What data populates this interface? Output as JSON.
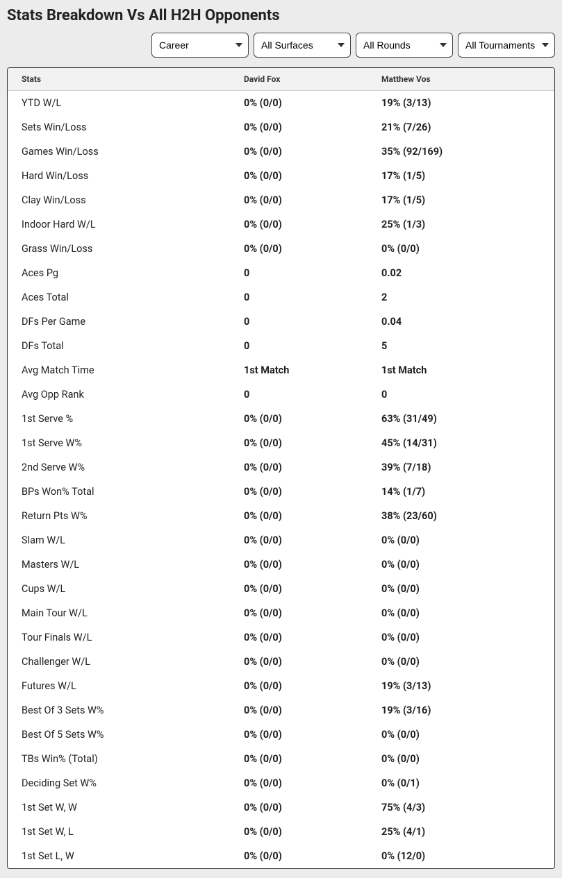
{
  "title": "Stats Breakdown Vs All H2H Opponents",
  "filters": {
    "career": {
      "selected": "Career",
      "options": [
        "Career"
      ]
    },
    "surfaces": {
      "selected": "All Surfaces",
      "options": [
        "All Surfaces"
      ]
    },
    "rounds": {
      "selected": "All Rounds",
      "options": [
        "All Rounds"
      ]
    },
    "tournaments": {
      "selected": "All Tournaments",
      "options": [
        "All Tournaments"
      ]
    }
  },
  "columns": {
    "stats": "Stats",
    "player1": "David Fox",
    "player2": "Matthew Vos"
  },
  "rows": [
    {
      "label": "YTD W/L",
      "p1": "0% (0/0)",
      "p2": "19% (3/13)"
    },
    {
      "label": "Sets Win/Loss",
      "p1": "0% (0/0)",
      "p2": "21% (7/26)"
    },
    {
      "label": "Games Win/Loss",
      "p1": "0% (0/0)",
      "p2": "35% (92/169)"
    },
    {
      "label": "Hard Win/Loss",
      "p1": "0% (0/0)",
      "p2": "17% (1/5)"
    },
    {
      "label": "Clay Win/Loss",
      "p1": "0% (0/0)",
      "p2": "17% (1/5)"
    },
    {
      "label": "Indoor Hard W/L",
      "p1": "0% (0/0)",
      "p2": "25% (1/3)"
    },
    {
      "label": "Grass Win/Loss",
      "p1": "0% (0/0)",
      "p2": "0% (0/0)"
    },
    {
      "label": "Aces Pg",
      "p1": "0",
      "p2": "0.02"
    },
    {
      "label": "Aces Total",
      "p1": "0",
      "p2": "2"
    },
    {
      "label": "DFs Per Game",
      "p1": "0",
      "p2": "0.04"
    },
    {
      "label": "DFs Total",
      "p1": "0",
      "p2": "5"
    },
    {
      "label": "Avg Match Time",
      "p1": "1st Match",
      "p2": "1st Match"
    },
    {
      "label": "Avg Opp Rank",
      "p1": "0",
      "p2": "0"
    },
    {
      "label": "1st Serve %",
      "p1": "0% (0/0)",
      "p2": "63% (31/49)"
    },
    {
      "label": "1st Serve W%",
      "p1": "0% (0/0)",
      "p2": "45% (14/31)"
    },
    {
      "label": "2nd Serve W%",
      "p1": "0% (0/0)",
      "p2": "39% (7/18)"
    },
    {
      "label": "BPs Won% Total",
      "p1": "0% (0/0)",
      "p2": "14% (1/7)"
    },
    {
      "label": "Return Pts W%",
      "p1": "0% (0/0)",
      "p2": "38% (23/60)"
    },
    {
      "label": "Slam W/L",
      "p1": "0% (0/0)",
      "p2": "0% (0/0)"
    },
    {
      "label": "Masters W/L",
      "p1": "0% (0/0)",
      "p2": "0% (0/0)"
    },
    {
      "label": "Cups W/L",
      "p1": "0% (0/0)",
      "p2": "0% (0/0)"
    },
    {
      "label": "Main Tour W/L",
      "p1": "0% (0/0)",
      "p2": "0% (0/0)"
    },
    {
      "label": "Tour Finals W/L",
      "p1": "0% (0/0)",
      "p2": "0% (0/0)"
    },
    {
      "label": "Challenger W/L",
      "p1": "0% (0/0)",
      "p2": "0% (0/0)"
    },
    {
      "label": "Futures W/L",
      "p1": "0% (0/0)",
      "p2": "19% (3/13)"
    },
    {
      "label": "Best Of 3 Sets W%",
      "p1": "0% (0/0)",
      "p2": "19% (3/16)"
    },
    {
      "label": "Best Of 5 Sets W%",
      "p1": "0% (0/0)",
      "p2": "0% (0/0)"
    },
    {
      "label": "TBs Win% (Total)",
      "p1": "0% (0/0)",
      "p2": "0% (0/0)"
    },
    {
      "label": "Deciding Set W%",
      "p1": "0% (0/0)",
      "p2": "0% (0/1)"
    },
    {
      "label": "1st Set W, W",
      "p1": "0% (0/0)",
      "p2": "75% (4/3)"
    },
    {
      "label": "1st Set W, L",
      "p1": "0% (0/0)",
      "p2": "25% (4/1)"
    },
    {
      "label": "1st Set L, W",
      "p1": "0% (0/0)",
      "p2": "0% (12/0)"
    }
  ]
}
